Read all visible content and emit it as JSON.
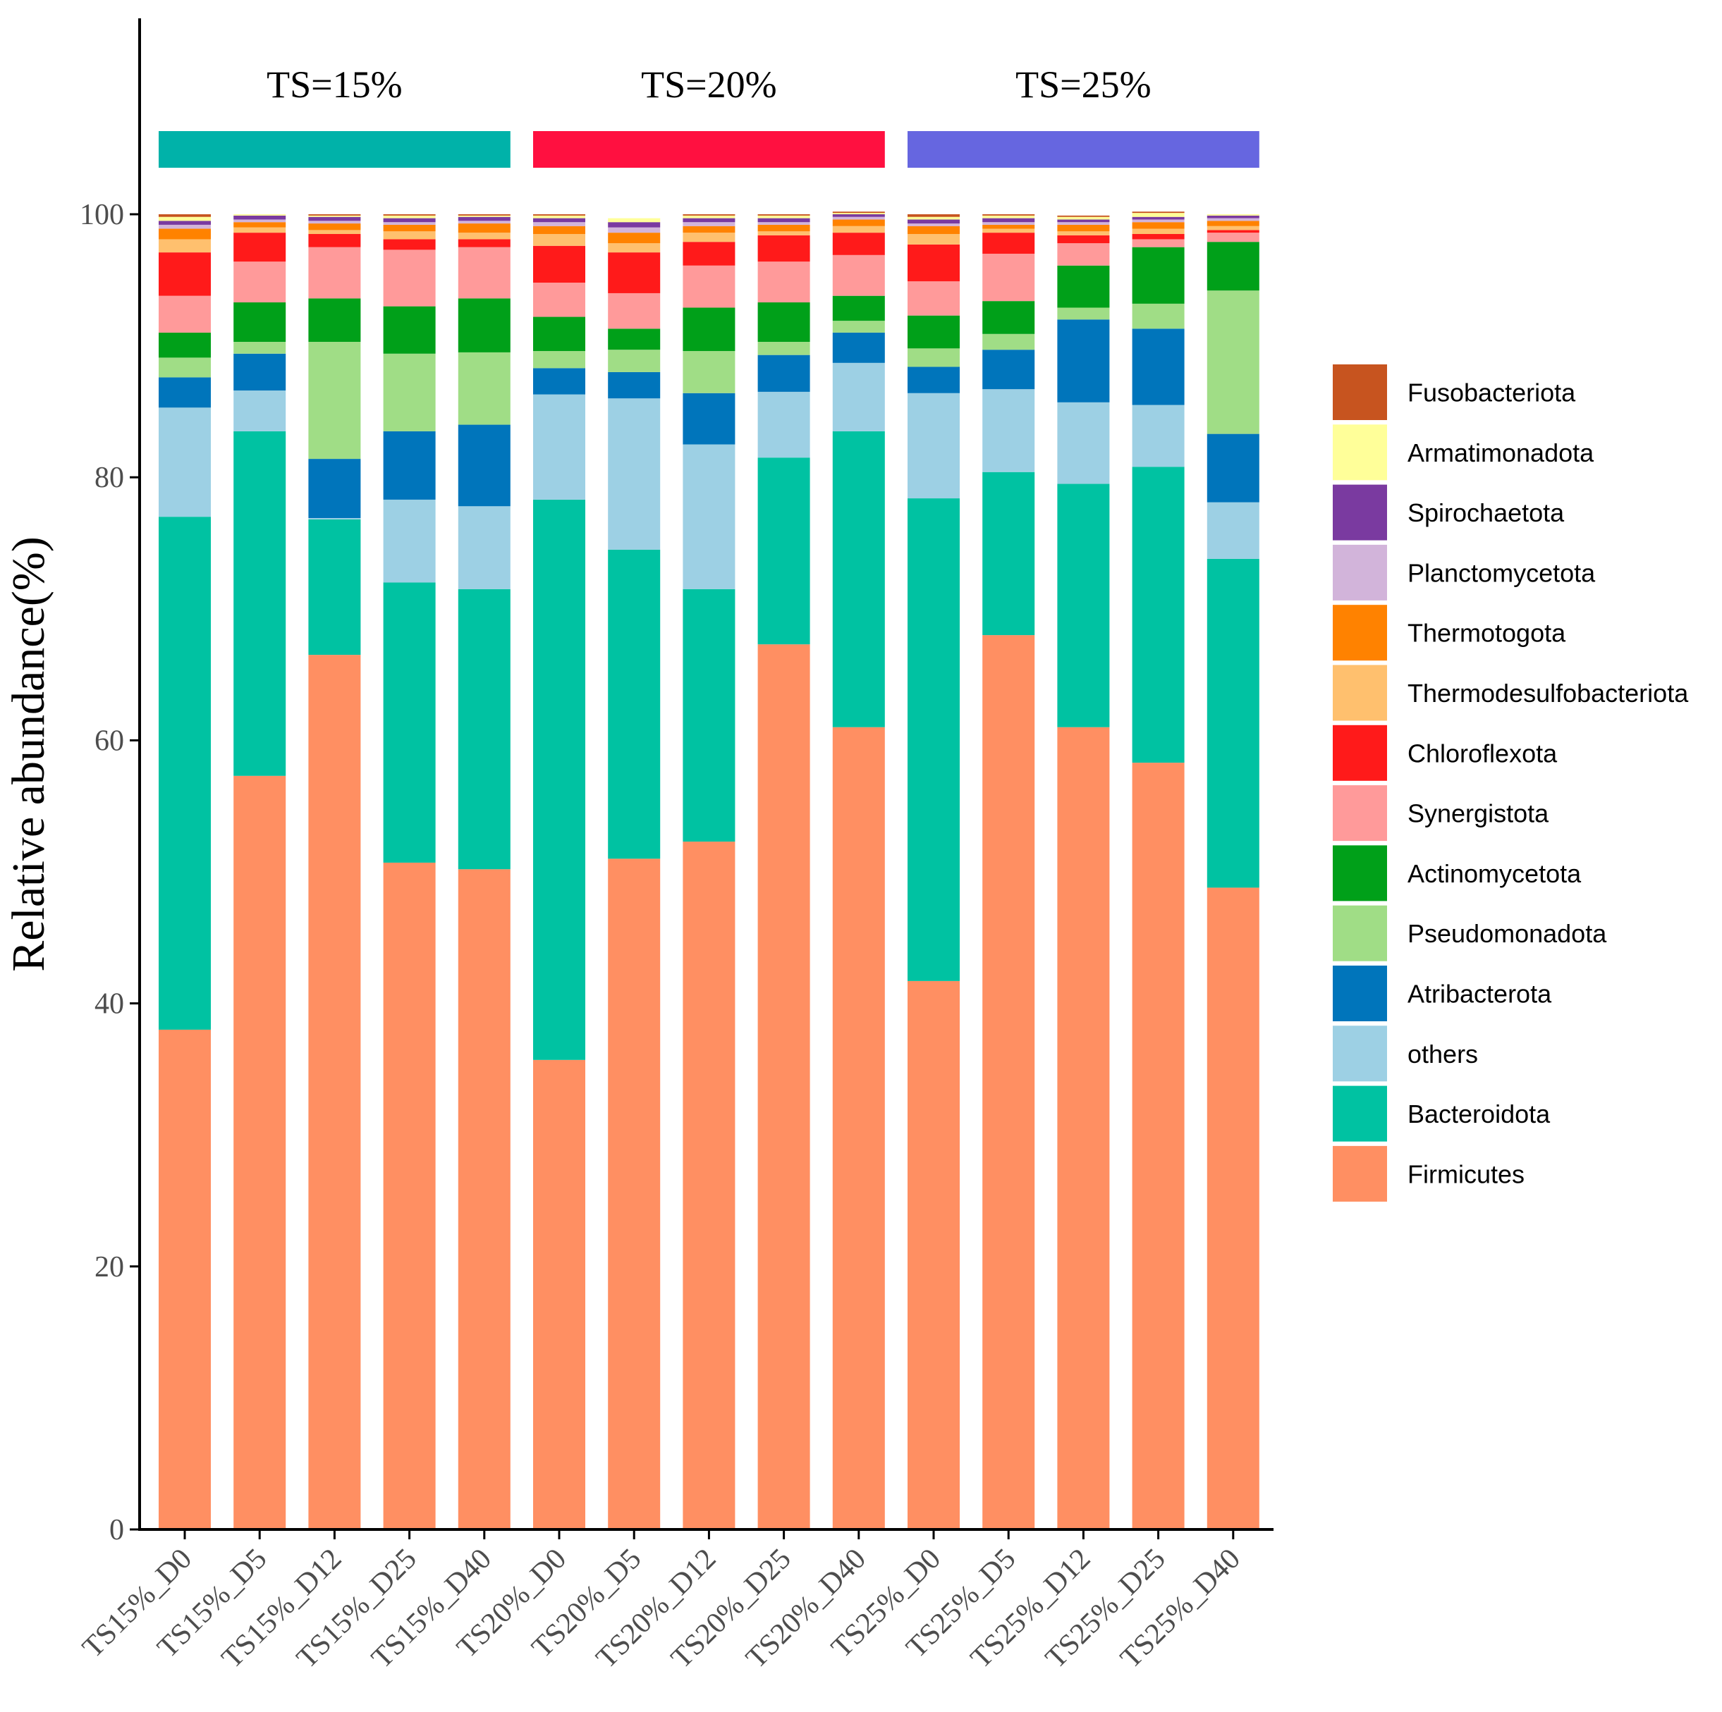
{
  "chart_data": {
    "type": "stacked-bar",
    "ylabel": "Relative abundance(%)",
    "ylim": [
      0,
      100
    ],
    "yticks": [
      0,
      20,
      40,
      60,
      80,
      100
    ],
    "categories": [
      "TS15%_D0",
      "TS15%_D5",
      "TS15%_D12",
      "TS15%_D25",
      "TS15%_D40",
      "TS20%_D0",
      "TS20%_D5",
      "TS20%_D12",
      "TS20%_D25",
      "TS20%_D40",
      "TS25%_D0",
      "TS25%_D5",
      "TS25%_D12",
      "TS25%_D25",
      "TS25%_D40"
    ],
    "groups": [
      {
        "label": "TS=15%",
        "color": "#00B2A9",
        "start": 0,
        "end": 4
      },
      {
        "label": "TS=20%",
        "color": "#FF1040",
        "start": 5,
        "end": 9
      },
      {
        "label": "TS=25%",
        "color": "#6666E0",
        "start": 10,
        "end": 14
      }
    ],
    "series": [
      {
        "name": "Firmicutes",
        "color": "#FF8F62",
        "values": [
          38.0,
          57.3,
          66.5,
          50.7,
          50.2,
          35.7,
          51.0,
          52.3,
          67.3,
          61.0,
          41.7,
          68.0,
          61.0,
          58.3,
          48.8
        ]
      },
      {
        "name": "Bacteroidota",
        "color": "#00C2A2",
        "values": [
          39.0,
          26.2,
          10.3,
          21.3,
          21.3,
          42.6,
          23.5,
          19.2,
          14.2,
          22.5,
          36.7,
          12.4,
          18.5,
          22.5,
          25.0
        ]
      },
      {
        "name": "others",
        "color": "#9DD0E4",
        "values": [
          8.3,
          3.1,
          0.1,
          6.3,
          6.3,
          8.0,
          11.5,
          11.0,
          5.0,
          5.2,
          8.0,
          6.3,
          6.2,
          4.7,
          4.3
        ]
      },
      {
        "name": "Atribacterota",
        "color": "#0075BB",
        "values": [
          2.3,
          2.8,
          4.5,
          5.2,
          6.2,
          2.0,
          2.0,
          3.9,
          2.8,
          2.3,
          2.0,
          3.0,
          6.3,
          5.8,
          5.2
        ]
      },
      {
        "name": "Pseudomonadota",
        "color": "#A0DD86",
        "values": [
          1.5,
          0.9,
          8.9,
          5.9,
          5.5,
          1.3,
          1.7,
          3.2,
          1.0,
          0.9,
          1.4,
          1.2,
          0.9,
          1.9,
          10.9
        ]
      },
      {
        "name": "Actinomycetota",
        "color": "#00A019",
        "values": [
          1.9,
          3.0,
          3.3,
          3.6,
          4.1,
          2.6,
          1.6,
          3.3,
          3.0,
          1.9,
          2.5,
          2.5,
          3.2,
          4.3,
          3.7
        ]
      },
      {
        "name": "Synergistota",
        "color": "#FF9A9A",
        "values": [
          2.8,
          3.1,
          3.9,
          4.3,
          3.9,
          2.6,
          2.7,
          3.2,
          3.1,
          3.1,
          2.6,
          3.6,
          1.7,
          0.6,
          0.7
        ]
      },
      {
        "name": "Chloroflexota",
        "color": "#FF1A1A",
        "values": [
          3.3,
          2.2,
          1.0,
          0.8,
          0.6,
          2.8,
          3.1,
          1.8,
          2.0,
          1.7,
          2.8,
          1.6,
          0.6,
          0.4,
          0.2
        ]
      },
      {
        "name": "Thermodesulfobacteriota",
        "color": "#FFC06E",
        "values": [
          1.0,
          0.4,
          0.3,
          0.6,
          0.5,
          0.9,
          0.7,
          0.7,
          0.3,
          0.5,
          0.8,
          0.3,
          0.3,
          0.4,
          0.3
        ]
      },
      {
        "name": "Thermotogota",
        "color": "#FF8200",
        "values": [
          0.8,
          0.4,
          0.5,
          0.5,
          0.7,
          0.6,
          0.8,
          0.5,
          0.5,
          0.5,
          0.6,
          0.3,
          0.5,
          0.5,
          0.4
        ]
      },
      {
        "name": "Planctomycetota",
        "color": "#D2B4DA",
        "values": [
          0.3,
          0.2,
          0.2,
          0.2,
          0.2,
          0.3,
          0.4,
          0.3,
          0.2,
          0.2,
          0.2,
          0.2,
          0.2,
          0.2,
          0.2
        ]
      },
      {
        "name": "Spirochaetota",
        "color": "#7A3AA0",
        "values": [
          0.3,
          0.3,
          0.3,
          0.3,
          0.3,
          0.3,
          0.4,
          0.3,
          0.3,
          0.2,
          0.3,
          0.3,
          0.2,
          0.2,
          0.2
        ]
      },
      {
        "name": "Armatimonadota",
        "color": "#FFFF99",
        "values": [
          0.3,
          0.1,
          0.1,
          0.2,
          0.1,
          0.2,
          0.3,
          0.2,
          0.2,
          0.1,
          0.2,
          0.2,
          0.2,
          0.3,
          0.1
        ]
      },
      {
        "name": "Fusobacteriota",
        "color": "#C7541F",
        "values": [
          0.2,
          0.0,
          0.1,
          0.1,
          0.1,
          0.1,
          0.0,
          0.1,
          0.1,
          0.1,
          0.2,
          0.1,
          0.1,
          0.1,
          0.0
        ]
      }
    ],
    "legend_order": [
      "Fusobacteriota",
      "Armatimonadota",
      "Spirochaetota",
      "Planctomycetota",
      "Thermotogota",
      "Thermodesulfobacteriota",
      "Chloroflexota",
      "Synergistota",
      "Actinomycetota",
      "Pseudomonadota",
      "Atribacterota",
      "others",
      "Bacteroidota",
      "Firmicutes"
    ],
    "legend_position": "right"
  }
}
